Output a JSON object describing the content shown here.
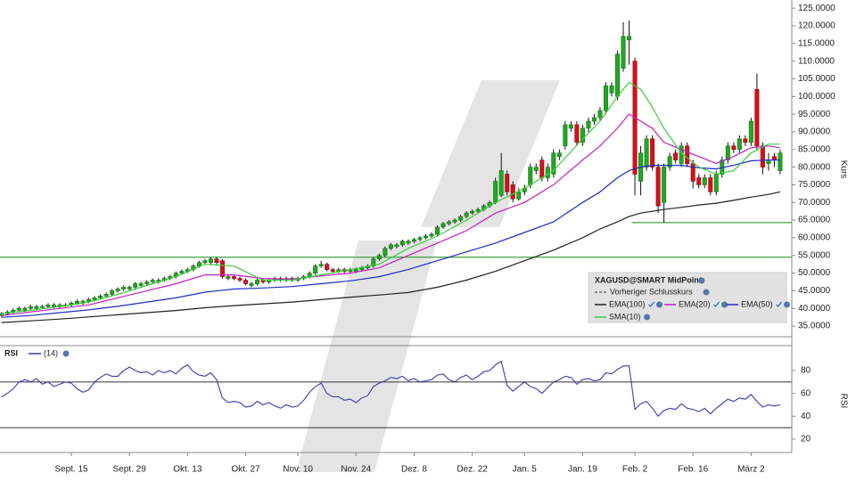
{
  "chart_data": {
    "type": "candlestick",
    "ylabel": "Kurs",
    "categories": [
      null,
      null,
      null,
      null,
      null,
      null,
      null,
      null,
      null,
      null,
      null,
      null,
      "Sept. 15",
      null,
      null,
      null,
      null,
      null,
      null,
      null,
      null,
      null,
      "Sept. 29",
      null,
      null,
      null,
      null,
      null,
      null,
      null,
      null,
      null,
      "Okt. 13",
      null,
      null,
      null,
      null,
      null,
      null,
      null,
      null,
      null,
      "Okt. 27",
      null,
      null,
      null,
      null,
      null,
      null,
      null,
      null,
      "Nov. 10",
      null,
      null,
      null,
      null,
      null,
      null,
      null,
      null,
      null,
      "Nov. 24",
      null,
      null,
      null,
      null,
      null,
      null,
      null,
      null,
      null,
      "Dez. 8",
      null,
      null,
      null,
      null,
      null,
      null,
      null,
      null,
      null,
      "Dez. 22",
      null,
      null,
      null,
      null,
      null,
      null,
      null,
      null,
      "Jan. 5",
      null,
      null,
      null,
      null,
      null,
      null,
      null,
      null,
      null,
      "Jan. 19",
      null,
      null,
      null,
      null,
      null,
      null,
      null,
      null,
      "Feb. 2",
      null,
      null,
      null,
      null,
      null,
      null,
      null,
      null,
      null,
      "Feb. 16",
      null,
      null,
      null,
      null,
      null,
      null,
      null,
      null,
      null,
      "März 2",
      null,
      null,
      null,
      null,
      null
    ],
    "open": [
      38,
      38.5,
      39,
      39.5,
      39.5,
      40,
      40,
      40.5,
      40.5,
      40.5,
      40.5,
      41,
      41,
      41.5,
      41.5,
      42,
      42.5,
      43,
      43.5,
      44,
      45,
      45.5,
      45.5,
      46,
      46.5,
      47,
      47.5,
      47.5,
      48,
      48.5,
      49,
      50,
      50.5,
      51,
      52,
      53,
      53,
      54,
      53.5,
      48.5,
      49,
      48.5,
      48,
      46.5,
      47,
      48,
      47.5,
      48,
      48.5,
      48,
      48.5,
      48,
      48.5,
      49,
      50,
      52,
      52.5,
      51,
      50.5,
      51,
      50.5,
      50.5,
      51,
      51.5,
      52,
      54,
      55,
      57,
      57.5,
      58,
      58.5,
      59,
      59.5,
      60,
      60.5,
      61,
      63,
      64,
      64.5,
      65,
      66,
      67,
      67.5,
      68,
      69,
      70,
      72,
      78,
      75,
      71,
      73,
      75,
      79,
      82,
      77,
      78,
      83,
      86,
      91,
      92,
      87,
      91,
      93,
      94,
      96,
      101,
      100,
      108,
      116,
      110,
      76,
      80,
      88,
      80,
      70,
      80,
      84,
      81,
      86,
      81,
      77,
      75,
      77,
      73,
      78,
      82,
      86,
      85,
      88,
      87,
      102,
      86,
      81,
      83,
      79
    ],
    "high": [
      39,
      39.5,
      40,
      40.5,
      40.5,
      41,
      41,
      41,
      41.5,
      41.5,
      41.5,
      41.5,
      42,
      42.5,
      42.5,
      43,
      43.5,
      44,
      44.5,
      45.5,
      46,
      46.5,
      46.5,
      47.5,
      47.5,
      48,
      48.5,
      48.5,
      49,
      49.5,
      50.5,
      51,
      51.5,
      52.5,
      53.5,
      54,
      54.5,
      54.5,
      54,
      49.5,
      49.5,
      49,
      48.5,
      47.5,
      48.5,
      48.5,
      48.5,
      49,
      49,
      49,
      49,
      49,
      49.5,
      50.5,
      52.5,
      53.5,
      53,
      51.5,
      51.5,
      51.5,
      51.5,
      51.5,
      52,
      52.5,
      54.5,
      55.5,
      57.5,
      58.5,
      58.5,
      59.5,
      59.5,
      60,
      60.5,
      61,
      61.5,
      63.5,
      64.5,
      65,
      65.5,
      66.5,
      67.5,
      68,
      68.5,
      69.5,
      70.5,
      77,
      84,
      79,
      76,
      74,
      75,
      81,
      81,
      83,
      81,
      85,
      85,
      93,
      93,
      93,
      92,
      94,
      95,
      97,
      104,
      104,
      113,
      121,
      121.5,
      111,
      86,
      89,
      89,
      81,
      81,
      84,
      85,
      87,
      87,
      82,
      78,
      78,
      78,
      79,
      83,
      87,
      87,
      89,
      89,
      94,
      106.5,
      87,
      84,
      84,
      85
    ],
    "low": [
      37.5,
      38,
      38.5,
      39,
      39,
      39.5,
      39.5,
      40,
      40,
      40,
      40,
      40.5,
      40.5,
      41,
      41,
      41.5,
      42,
      42.5,
      43,
      43.5,
      44.5,
      45,
      45,
      45.5,
      46,
      46.5,
      47,
      47,
      47.5,
      48,
      48.5,
      49.5,
      50,
      50.5,
      51.5,
      52.5,
      52.5,
      52.5,
      48.5,
      48,
      48,
      47.5,
      46.5,
      46,
      46.5,
      47,
      47,
      47.5,
      47.5,
      47.5,
      47.5,
      47.5,
      48,
      48.5,
      49.5,
      51.5,
      50.5,
      50,
      50,
      50,
      50,
      50,
      50.5,
      51,
      51.5,
      53.5,
      54.5,
      56.5,
      57,
      57.5,
      58,
      58.5,
      59,
      59.5,
      60,
      60.5,
      62.5,
      63.5,
      64,
      64.5,
      65.5,
      66.5,
      67,
      67.5,
      68.5,
      69.5,
      71.5,
      72,
      70,
      70.5,
      72,
      74,
      78,
      76,
      76,
      77,
      82,
      85,
      90,
      86,
      86,
      90,
      92,
      93,
      95,
      100,
      99,
      107,
      109,
      72,
      72,
      79,
      79,
      67,
      64.3,
      79,
      81,
      80,
      80,
      74,
      74,
      74,
      72,
      72,
      77,
      81,
      84,
      84,
      86,
      86,
      85,
      78,
      79,
      80,
      78
    ],
    "close": [
      38.5,
      39,
      39.5,
      40,
      40,
      40.5,
      40.5,
      40.5,
      41,
      41,
      41,
      41,
      41.5,
      42,
      42,
      42.5,
      43,
      43.5,
      44,
      45,
      45.5,
      46,
      46,
      47,
      47,
      47.5,
      48,
      48,
      48.5,
      49,
      50,
      50.5,
      51,
      52,
      53,
      53.5,
      54,
      53,
      49,
      49,
      48.5,
      48,
      47,
      47,
      48,
      47.5,
      48,
      48.5,
      48,
      48.5,
      48,
      48.5,
      49,
      50,
      52,
      52.5,
      51,
      50.5,
      51,
      50.5,
      51,
      51,
      51.5,
      52,
      54,
      55,
      57,
      58,
      58,
      59,
      59,
      59.5,
      60,
      60.5,
      61,
      63,
      64,
      64.5,
      65,
      66,
      67,
      67.5,
      68,
      69,
      70,
      76,
      79,
      73,
      71,
      73,
      74,
      80,
      80,
      77,
      80,
      84,
      84,
      92,
      92,
      87,
      91,
      93,
      94,
      96,
      103,
      103,
      112,
      117,
      117,
      78,
      84,
      88,
      80,
      69,
      80,
      83,
      82,
      86,
      81,
      76,
      75,
      77,
      73,
      78,
      82,
      86,
      85,
      88,
      87,
      93,
      86,
      80,
      82,
      82,
      84
    ],
    "up_color": "#22a822",
    "down_color": "#d4111b",
    "ylim": [
      32,
      127.3
    ],
    "yticks": [
      {
        "value": 35,
        "label": "35.0000"
      },
      {
        "value": 40,
        "label": "40.0000"
      },
      {
        "value": 45,
        "label": "45.0000"
      },
      {
        "value": 50,
        "label": "50.0000"
      },
      {
        "value": 55,
        "label": "55.0000"
      },
      {
        "value": 60,
        "label": "60.0000"
      },
      {
        "value": 65,
        "label": "65.0000"
      },
      {
        "value": 70,
        "label": "70.0000"
      },
      {
        "value": 75,
        "label": "75.0000"
      },
      {
        "value": 80,
        "label": "80.0000"
      },
      {
        "value": 85,
        "label": "85.0000"
      },
      {
        "value": 90,
        "label": "90.0000"
      },
      {
        "value": 95,
        "label": "95.0000"
      },
      {
        "value": 100,
        "label": "100.0000"
      },
      {
        "value": 105,
        "label": "105.0000"
      },
      {
        "value": 110,
        "label": "110.0000"
      },
      {
        "value": 115,
        "label": "115.0000"
      },
      {
        "value": 120,
        "label": "120.0000"
      },
      {
        "value": 125,
        "label": "125.0000"
      }
    ],
    "hlines": [
      {
        "value": 54.5,
        "color": "#3aa53a"
      },
      {
        "value": 64.3,
        "color": "#3aa53a",
        "from": 109
      }
    ],
    "overlay_x": [
      0,
      5,
      10,
      15,
      20,
      25,
      30,
      35,
      40,
      45,
      50,
      55,
      60,
      65,
      70,
      75,
      80,
      85,
      90,
      95,
      100,
      103,
      106,
      108,
      110,
      112,
      114,
      117,
      120,
      123,
      126,
      129,
      132,
      134
    ],
    "overlays": [
      {
        "name": "EMA(100)",
        "color": "#222222",
        "values": [
          36,
          36.5,
          37,
          37.6,
          38.2,
          38.8,
          39.4,
          40.2,
          40.8,
          41.3,
          41.8,
          42.5,
          43.2,
          43.8,
          44.5,
          46,
          48,
          50.5,
          53.5,
          56.5,
          60,
          62.5,
          64.5,
          66,
          67,
          67.5,
          68,
          68.6,
          69.3,
          69.8,
          70.6,
          71.5,
          72.3,
          73
        ]
      },
      {
        "name": "EMA(20)",
        "color": "#c21fc2",
        "values": [
          38,
          39,
          40,
          41,
          43,
          45,
          47,
          49.5,
          49.5,
          48.5,
          48.3,
          49.2,
          50,
          51.5,
          55,
          58.5,
          62,
          67,
          70,
          75,
          82,
          86,
          91,
          95,
          93,
          91,
          87,
          85,
          83,
          81,
          83,
          85.5,
          86,
          85.5
        ]
      },
      {
        "name": "EMA(50)",
        "color": "#1c2cc4",
        "values": [
          37.5,
          38,
          38.8,
          39.6,
          40.6,
          41.8,
          43,
          44.6,
          45.5,
          45.8,
          46.2,
          47,
          47.8,
          49,
          51,
          53.5,
          56,
          58.5,
          61.5,
          64.5,
          70,
          73,
          77,
          79,
          80,
          80.5,
          80.5,
          80.5,
          79.8,
          79.5,
          80.5,
          81.8,
          82,
          82
        ]
      },
      {
        "name": "SMA(10)",
        "color": "#3ccc3c",
        "values": [
          38.5,
          39.5,
          40.5,
          41.8,
          44,
          46.5,
          49,
          52.5,
          52,
          48,
          48,
          49.5,
          51,
          52.5,
          57,
          60.5,
          65,
          70,
          74,
          79,
          88,
          93,
          100,
          104,
          102,
          97,
          91,
          84,
          80,
          78,
          79,
          84,
          86.5,
          86.5
        ]
      }
    ],
    "legend": {
      "title": "XAGUSD@SMART MidPoint",
      "previous_close": "Vorheriger Schlusskurs"
    },
    "indicator": {
      "type": "line",
      "name": "RSI",
      "period_label": "(14)",
      "color": "#3b3bb0",
      "values": [
        57,
        60,
        64,
        70,
        72,
        70,
        73,
        68,
        70,
        66,
        68,
        70,
        69,
        64,
        61,
        63,
        70,
        74,
        77,
        75,
        75,
        80,
        83,
        80,
        78,
        79,
        76,
        80,
        78,
        80,
        77,
        82,
        85,
        79,
        76,
        75,
        78,
        72,
        56,
        52,
        53,
        52,
        48,
        49,
        53,
        50,
        52,
        49,
        47,
        50,
        48,
        49,
        54,
        61,
        66,
        69,
        60,
        57,
        57,
        54,
        55,
        52,
        56,
        58,
        66,
        69,
        71,
        74,
        73,
        75,
        71,
        73,
        70,
        71,
        72,
        76,
        77,
        72,
        70,
        74,
        76,
        72,
        75,
        79,
        80,
        85,
        88,
        67,
        62,
        66,
        70,
        66,
        64,
        60,
        65,
        70,
        72,
        75,
        74,
        68,
        72,
        73,
        71,
        72,
        78,
        77,
        81,
        84,
        84,
        46,
        51,
        53,
        47,
        40,
        45,
        47,
        46,
        51,
        47,
        46,
        44,
        47,
        42,
        47,
        51,
        55,
        53,
        56,
        55,
        59,
        53,
        48,
        50,
        49,
        50
      ],
      "ylim": [
        8.3,
        101.8
      ],
      "yticks": [
        20,
        40,
        60,
        80
      ],
      "levels": [
        70,
        30
      ]
    }
  }
}
